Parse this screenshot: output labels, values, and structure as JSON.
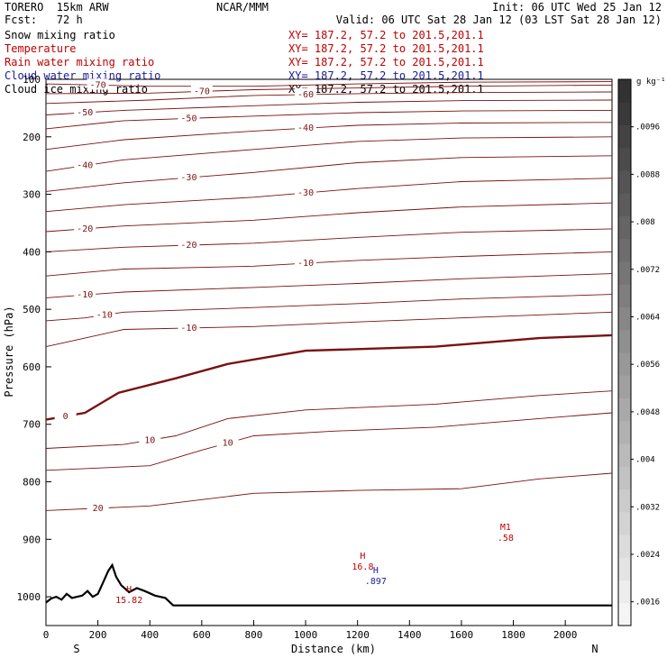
{
  "header": {
    "model": "TORERO  15km ARW",
    "center": "NCAR/MMM",
    "init": "Init: 06 UTC Wed 25 Jan 12",
    "fcst": "Fcst:   72 h",
    "valid": "Valid: 06 UTC Sat 28 Jan 12 (03 LST Sat 28 Jan 12)"
  },
  "fields": [
    {
      "name": "Snow mixing ratio",
      "xy": "XY= 187.2, 57.2 to 201.5,201.1",
      "color": "#000000"
    },
    {
      "name": "Temperature",
      "xy": "XY= 187.2, 57.2 to 201.5,201.1",
      "color": "#c00000"
    },
    {
      "name": "Rain water mixing ratio",
      "xy": "XY= 187.2, 57.2 to 201.5,201.1",
      "color": "#c00000"
    },
    {
      "name": "Cloud water mixing ratio",
      "xy": "XY= 187.2, 57.2 to 201.5,201.1",
      "color": "#1a1aa0"
    },
    {
      "name": "Cloud ice mixing ratio",
      "xy": "XY= 187.2, 57.2 to 201.5,201.1",
      "color": "#000000"
    }
  ],
  "chart_data": {
    "type": "contour",
    "xlabel": "Distance (km)",
    "ylabel": "Pressure (hPa)",
    "xlim": [
      0,
      2180
    ],
    "ylim": [
      1050,
      100
    ],
    "x_ticks": [
      "0",
      "200",
      "400",
      "600",
      "800",
      "1000",
      "1200",
      "1400",
      "1600",
      "1800",
      "2000"
    ],
    "y_ticks": [
      "100",
      "200",
      "300",
      "400",
      "500",
      "600",
      "700",
      "800",
      "900",
      "1000"
    ],
    "x_end_labels": {
      "left": "S",
      "right": "N"
    },
    "colorbar": {
      "unit": "g kg⁻¹",
      "ticks": [
        ".0096",
        ".0088",
        ".008",
        ".0072",
        ".0064",
        ".0056",
        ".0048",
        ".004",
        ".0032",
        ".0024",
        ".0016"
      ],
      "range": [
        0.0012,
        0.0104
      ]
    },
    "terrain": [
      [
        0,
        1010
      ],
      [
        20,
        1003
      ],
      [
        40,
        1000
      ],
      [
        60,
        1005
      ],
      [
        80,
        995
      ],
      [
        100,
        1002
      ],
      [
        120,
        1000
      ],
      [
        140,
        998
      ],
      [
        160,
        990
      ],
      [
        180,
        1000
      ],
      [
        200,
        995
      ],
      [
        220,
        975
      ],
      [
        240,
        955
      ],
      [
        255,
        945
      ],
      [
        270,
        965
      ],
      [
        290,
        980
      ],
      [
        320,
        992
      ],
      [
        350,
        985
      ],
      [
        380,
        990
      ],
      [
        420,
        998
      ],
      [
        460,
        1002
      ],
      [
        490,
        1015
      ],
      [
        700,
        1015
      ],
      [
        2180,
        1015
      ]
    ],
    "isotherms": [
      {
        "label": "-70",
        "pts": [
          [
            0,
            108
          ],
          [
            400,
            112
          ],
          [
            800,
            112
          ],
          [
            1200,
            108
          ],
          [
            1600,
            105
          ],
          [
            2180,
            104
          ]
        ]
      },
      {
        "label": "-70",
        "pts": [
          [
            0,
            125
          ],
          [
            400,
            124
          ],
          [
            800,
            118
          ],
          [
            1200,
            115
          ],
          [
            1600,
            112
          ],
          [
            2180,
            110
          ]
        ]
      },
      {
        "label": "-60",
        "pts": [
          [
            0,
            142
          ],
          [
            400,
            136
          ],
          [
            800,
            128
          ],
          [
            1200,
            125
          ],
          [
            1600,
            123
          ],
          [
            2180,
            122
          ]
        ]
      },
      {
        "label": "-50",
        "pts": [
          [
            0,
            162
          ],
          [
            300,
            154
          ],
          [
            800,
            146
          ],
          [
            1200,
            140
          ],
          [
            1600,
            137
          ],
          [
            2180,
            136
          ]
        ]
      },
      {
        "label": "-50",
        "pts": [
          [
            0,
            186
          ],
          [
            300,
            172
          ],
          [
            800,
            164
          ],
          [
            1200,
            158
          ],
          [
            1600,
            155
          ],
          [
            2180,
            154
          ]
        ]
      },
      {
        "label": "-40",
        "pts": [
          [
            0,
            222
          ],
          [
            300,
            205
          ],
          [
            800,
            190
          ],
          [
            1200,
            180
          ],
          [
            1600,
            176
          ],
          [
            2180,
            175
          ]
        ]
      },
      {
        "label": "-40",
        "pts": [
          [
            0,
            260
          ],
          [
            300,
            240
          ],
          [
            800,
            222
          ],
          [
            1200,
            208
          ],
          [
            1600,
            202
          ],
          [
            2180,
            200
          ]
        ]
      },
      {
        "label": "-30",
        "pts": [
          [
            0,
            295
          ],
          [
            300,
            280
          ],
          [
            800,
            262
          ],
          [
            1200,
            245
          ],
          [
            1600,
            236
          ],
          [
            2180,
            233
          ]
        ]
      },
      {
        "label": "-30",
        "pts": [
          [
            0,
            330
          ],
          [
            300,
            318
          ],
          [
            800,
            305
          ],
          [
            1200,
            290
          ],
          [
            1600,
            278
          ],
          [
            2180,
            272
          ]
        ]
      },
      {
        "label": "-20",
        "pts": [
          [
            0,
            365
          ],
          [
            300,
            355
          ],
          [
            800,
            345
          ],
          [
            1200,
            332
          ],
          [
            1600,
            322
          ],
          [
            2180,
            315
          ]
        ]
      },
      {
        "label": "-20",
        "pts": [
          [
            0,
            400
          ],
          [
            300,
            392
          ],
          [
            800,
            385
          ],
          [
            1200,
            375
          ],
          [
            1600,
            366
          ],
          [
            2180,
            360
          ]
        ]
      },
      {
        "label": "-10",
        "pts": [
          [
            0,
            442
          ],
          [
            300,
            430
          ],
          [
            800,
            425
          ],
          [
            1200,
            415
          ],
          [
            1600,
            408
          ],
          [
            2180,
            400
          ]
        ]
      },
      {
        "label": "-10",
        "pts": [
          [
            0,
            480
          ],
          [
            300,
            470
          ],
          [
            800,
            462
          ],
          [
            1200,
            455
          ],
          [
            1600,
            447
          ],
          [
            2180,
            438
          ]
        ]
      },
      {
        "label": "-10",
        "pts": [
          [
            0,
            520
          ],
          [
            150,
            515
          ],
          [
            300,
            505
          ],
          [
            800,
            497
          ],
          [
            1200,
            490
          ],
          [
            1600,
            482
          ],
          [
            2180,
            474
          ]
        ]
      },
      {
        "label": "-10",
        "pts": [
          [
            0,
            565
          ],
          [
            150,
            550
          ],
          [
            300,
            535
          ],
          [
            800,
            530
          ],
          [
            1200,
            522
          ],
          [
            1600,
            515
          ],
          [
            2180,
            505
          ]
        ]
      },
      {
        "label": "0",
        "bold": true,
        "pts": [
          [
            0,
            692
          ],
          [
            150,
            680
          ],
          [
            280,
            645
          ],
          [
            500,
            620
          ],
          [
            700,
            595
          ],
          [
            1000,
            572
          ],
          [
            1500,
            565
          ],
          [
            1900,
            550
          ],
          [
            2180,
            545
          ]
        ]
      },
      {
        "label": "10",
        "pts": [
          [
            0,
            742
          ],
          [
            300,
            735
          ],
          [
            500,
            720
          ],
          [
            700,
            690
          ],
          [
            1000,
            675
          ],
          [
            1500,
            665
          ],
          [
            1900,
            650
          ],
          [
            2180,
            642
          ]
        ]
      },
      {
        "label": "10",
        "pts": [
          [
            0,
            780
          ],
          [
            400,
            772
          ],
          [
            600,
            745
          ],
          [
            800,
            720
          ],
          [
            1100,
            712
          ],
          [
            1500,
            705
          ],
          [
            1900,
            690
          ],
          [
            2180,
            680
          ]
        ]
      },
      {
        "label": "20",
        "pts": [
          [
            0,
            850
          ],
          [
            400,
            842
          ],
          [
            800,
            820
          ],
          [
            1200,
            815
          ],
          [
            1600,
            812
          ],
          [
            1900,
            795
          ],
          [
            2180,
            785
          ]
        ]
      }
    ],
    "markers": [
      {
        "label": "H",
        "value": "16.8",
        "x": 1220,
        "p": 940,
        "color": "#c00000"
      },
      {
        "label": "H",
        "value": "15.82",
        "x": 320,
        "p": 998,
        "color": "#c00000"
      },
      {
        "label": "H",
        "value": ".897",
        "x": 1270,
        "p": 965,
        "color": "#1a1aa0"
      },
      {
        "label": "M1",
        "value": ".58",
        "x": 1770,
        "p": 890,
        "color": "#c00000"
      }
    ]
  }
}
